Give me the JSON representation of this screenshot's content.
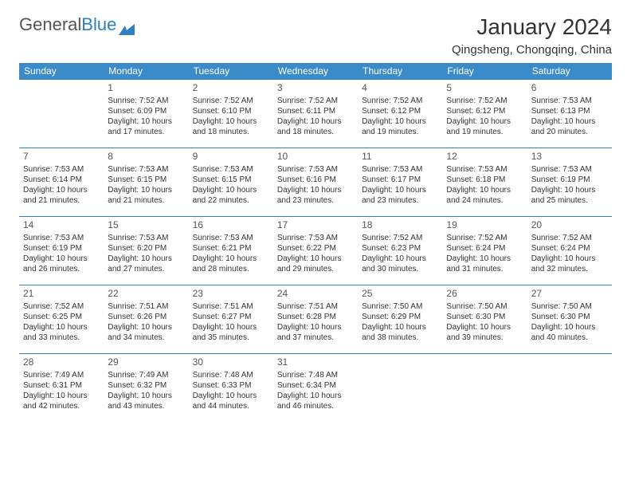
{
  "logo": {
    "text1": "General",
    "text2": "Blue"
  },
  "title": "January 2024",
  "location": "Qingsheng, Chongqing, China",
  "header_color": "#3b8bc9",
  "border_color": "#2f7fc1",
  "day_headers": [
    "Sunday",
    "Monday",
    "Tuesday",
    "Wednesday",
    "Thursday",
    "Friday",
    "Saturday"
  ],
  "weeks": [
    [
      null,
      {
        "n": "1",
        "r": "7:52 AM",
        "s": "6:09 PM",
        "d": "10 hours and 17 minutes."
      },
      {
        "n": "2",
        "r": "7:52 AM",
        "s": "6:10 PM",
        "d": "10 hours and 18 minutes."
      },
      {
        "n": "3",
        "r": "7:52 AM",
        "s": "6:11 PM",
        "d": "10 hours and 18 minutes."
      },
      {
        "n": "4",
        "r": "7:52 AM",
        "s": "6:12 PM",
        "d": "10 hours and 19 minutes."
      },
      {
        "n": "5",
        "r": "7:52 AM",
        "s": "6:12 PM",
        "d": "10 hours and 19 minutes."
      },
      {
        "n": "6",
        "r": "7:53 AM",
        "s": "6:13 PM",
        "d": "10 hours and 20 minutes."
      }
    ],
    [
      {
        "n": "7",
        "r": "7:53 AM",
        "s": "6:14 PM",
        "d": "10 hours and 21 minutes."
      },
      {
        "n": "8",
        "r": "7:53 AM",
        "s": "6:15 PM",
        "d": "10 hours and 21 minutes."
      },
      {
        "n": "9",
        "r": "7:53 AM",
        "s": "6:15 PM",
        "d": "10 hours and 22 minutes."
      },
      {
        "n": "10",
        "r": "7:53 AM",
        "s": "6:16 PM",
        "d": "10 hours and 23 minutes."
      },
      {
        "n": "11",
        "r": "7:53 AM",
        "s": "6:17 PM",
        "d": "10 hours and 23 minutes."
      },
      {
        "n": "12",
        "r": "7:53 AM",
        "s": "6:18 PM",
        "d": "10 hours and 24 minutes."
      },
      {
        "n": "13",
        "r": "7:53 AM",
        "s": "6:19 PM",
        "d": "10 hours and 25 minutes."
      }
    ],
    [
      {
        "n": "14",
        "r": "7:53 AM",
        "s": "6:19 PM",
        "d": "10 hours and 26 minutes."
      },
      {
        "n": "15",
        "r": "7:53 AM",
        "s": "6:20 PM",
        "d": "10 hours and 27 minutes."
      },
      {
        "n": "16",
        "r": "7:53 AM",
        "s": "6:21 PM",
        "d": "10 hours and 28 minutes."
      },
      {
        "n": "17",
        "r": "7:53 AM",
        "s": "6:22 PM",
        "d": "10 hours and 29 minutes."
      },
      {
        "n": "18",
        "r": "7:52 AM",
        "s": "6:23 PM",
        "d": "10 hours and 30 minutes."
      },
      {
        "n": "19",
        "r": "7:52 AM",
        "s": "6:24 PM",
        "d": "10 hours and 31 minutes."
      },
      {
        "n": "20",
        "r": "7:52 AM",
        "s": "6:24 PM",
        "d": "10 hours and 32 minutes."
      }
    ],
    [
      {
        "n": "21",
        "r": "7:52 AM",
        "s": "6:25 PM",
        "d": "10 hours and 33 minutes."
      },
      {
        "n": "22",
        "r": "7:51 AM",
        "s": "6:26 PM",
        "d": "10 hours and 34 minutes."
      },
      {
        "n": "23",
        "r": "7:51 AM",
        "s": "6:27 PM",
        "d": "10 hours and 35 minutes."
      },
      {
        "n": "24",
        "r": "7:51 AM",
        "s": "6:28 PM",
        "d": "10 hours and 37 minutes."
      },
      {
        "n": "25",
        "r": "7:50 AM",
        "s": "6:29 PM",
        "d": "10 hours and 38 minutes."
      },
      {
        "n": "26",
        "r": "7:50 AM",
        "s": "6:30 PM",
        "d": "10 hours and 39 minutes."
      },
      {
        "n": "27",
        "r": "7:50 AM",
        "s": "6:30 PM",
        "d": "10 hours and 40 minutes."
      }
    ],
    [
      {
        "n": "28",
        "r": "7:49 AM",
        "s": "6:31 PM",
        "d": "10 hours and 42 minutes."
      },
      {
        "n": "29",
        "r": "7:49 AM",
        "s": "6:32 PM",
        "d": "10 hours and 43 minutes."
      },
      {
        "n": "30",
        "r": "7:48 AM",
        "s": "6:33 PM",
        "d": "10 hours and 44 minutes."
      },
      {
        "n": "31",
        "r": "7:48 AM",
        "s": "6:34 PM",
        "d": "10 hours and 46 minutes."
      },
      null,
      null,
      null
    ]
  ],
  "labels": {
    "sunrise": "Sunrise:",
    "sunset": "Sunset:",
    "daylight": "Daylight:"
  }
}
